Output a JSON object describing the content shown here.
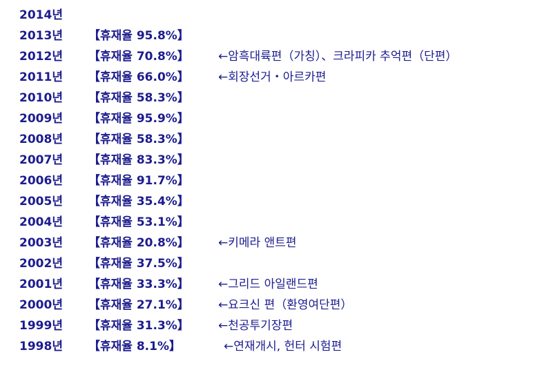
{
  "rows": [
    {
      "year": "2014년"
    },
    {
      "year": "2013년",
      "rate": "【휴재율 95.8%】"
    },
    {
      "year": "2012년",
      "rate": "【휴재율 70.8%】",
      "note": "←암흑대륙편（가칭）、크라피카 추억편（단편）"
    },
    {
      "year": "2011년",
      "rate": "【휴재율 66.0%】",
      "note": "←회장선거・아르카편"
    },
    {
      "year": "2010년",
      "rate": "【휴재율 58.3%】"
    },
    {
      "year": "2009년",
      "rate": "【휴재율 95.9%】"
    },
    {
      "year": "2008년",
      "rate": "【휴재율 58.3%】"
    },
    {
      "year": "2007년",
      "rate": "【휴재율 83.3%】"
    },
    {
      "year": "2006년",
      "rate": "【휴재율 91.7%】"
    },
    {
      "year": "2005년",
      "rate": "【휴재율 35.4%】"
    },
    {
      "year": "2004년",
      "rate": "【휴재율 53.1%】"
    },
    {
      "year": "2003년",
      "rate": "【휴재율 20.8%】",
      "note": "←키메라 앤트편"
    },
    {
      "year": "2002년",
      "rate": "【휴재율 37.5%】"
    },
    {
      "year": "2001년",
      "rate": "【휴재율 33.3%】",
      "note": "←그리드 아일랜드편"
    },
    {
      "year": "2000년",
      "rate": "【휴재율 27.1%】",
      "note": "←요크신 편（환영여단편）"
    },
    {
      "year": "1999년",
      "rate": "【휴재율 31.3%】",
      "note": "←천공투기장편"
    },
    {
      "year": "1998년",
      "rate": "【휴재율 8.1%】",
      "note": "←연재개시, 헌터 시험편"
    }
  ]
}
